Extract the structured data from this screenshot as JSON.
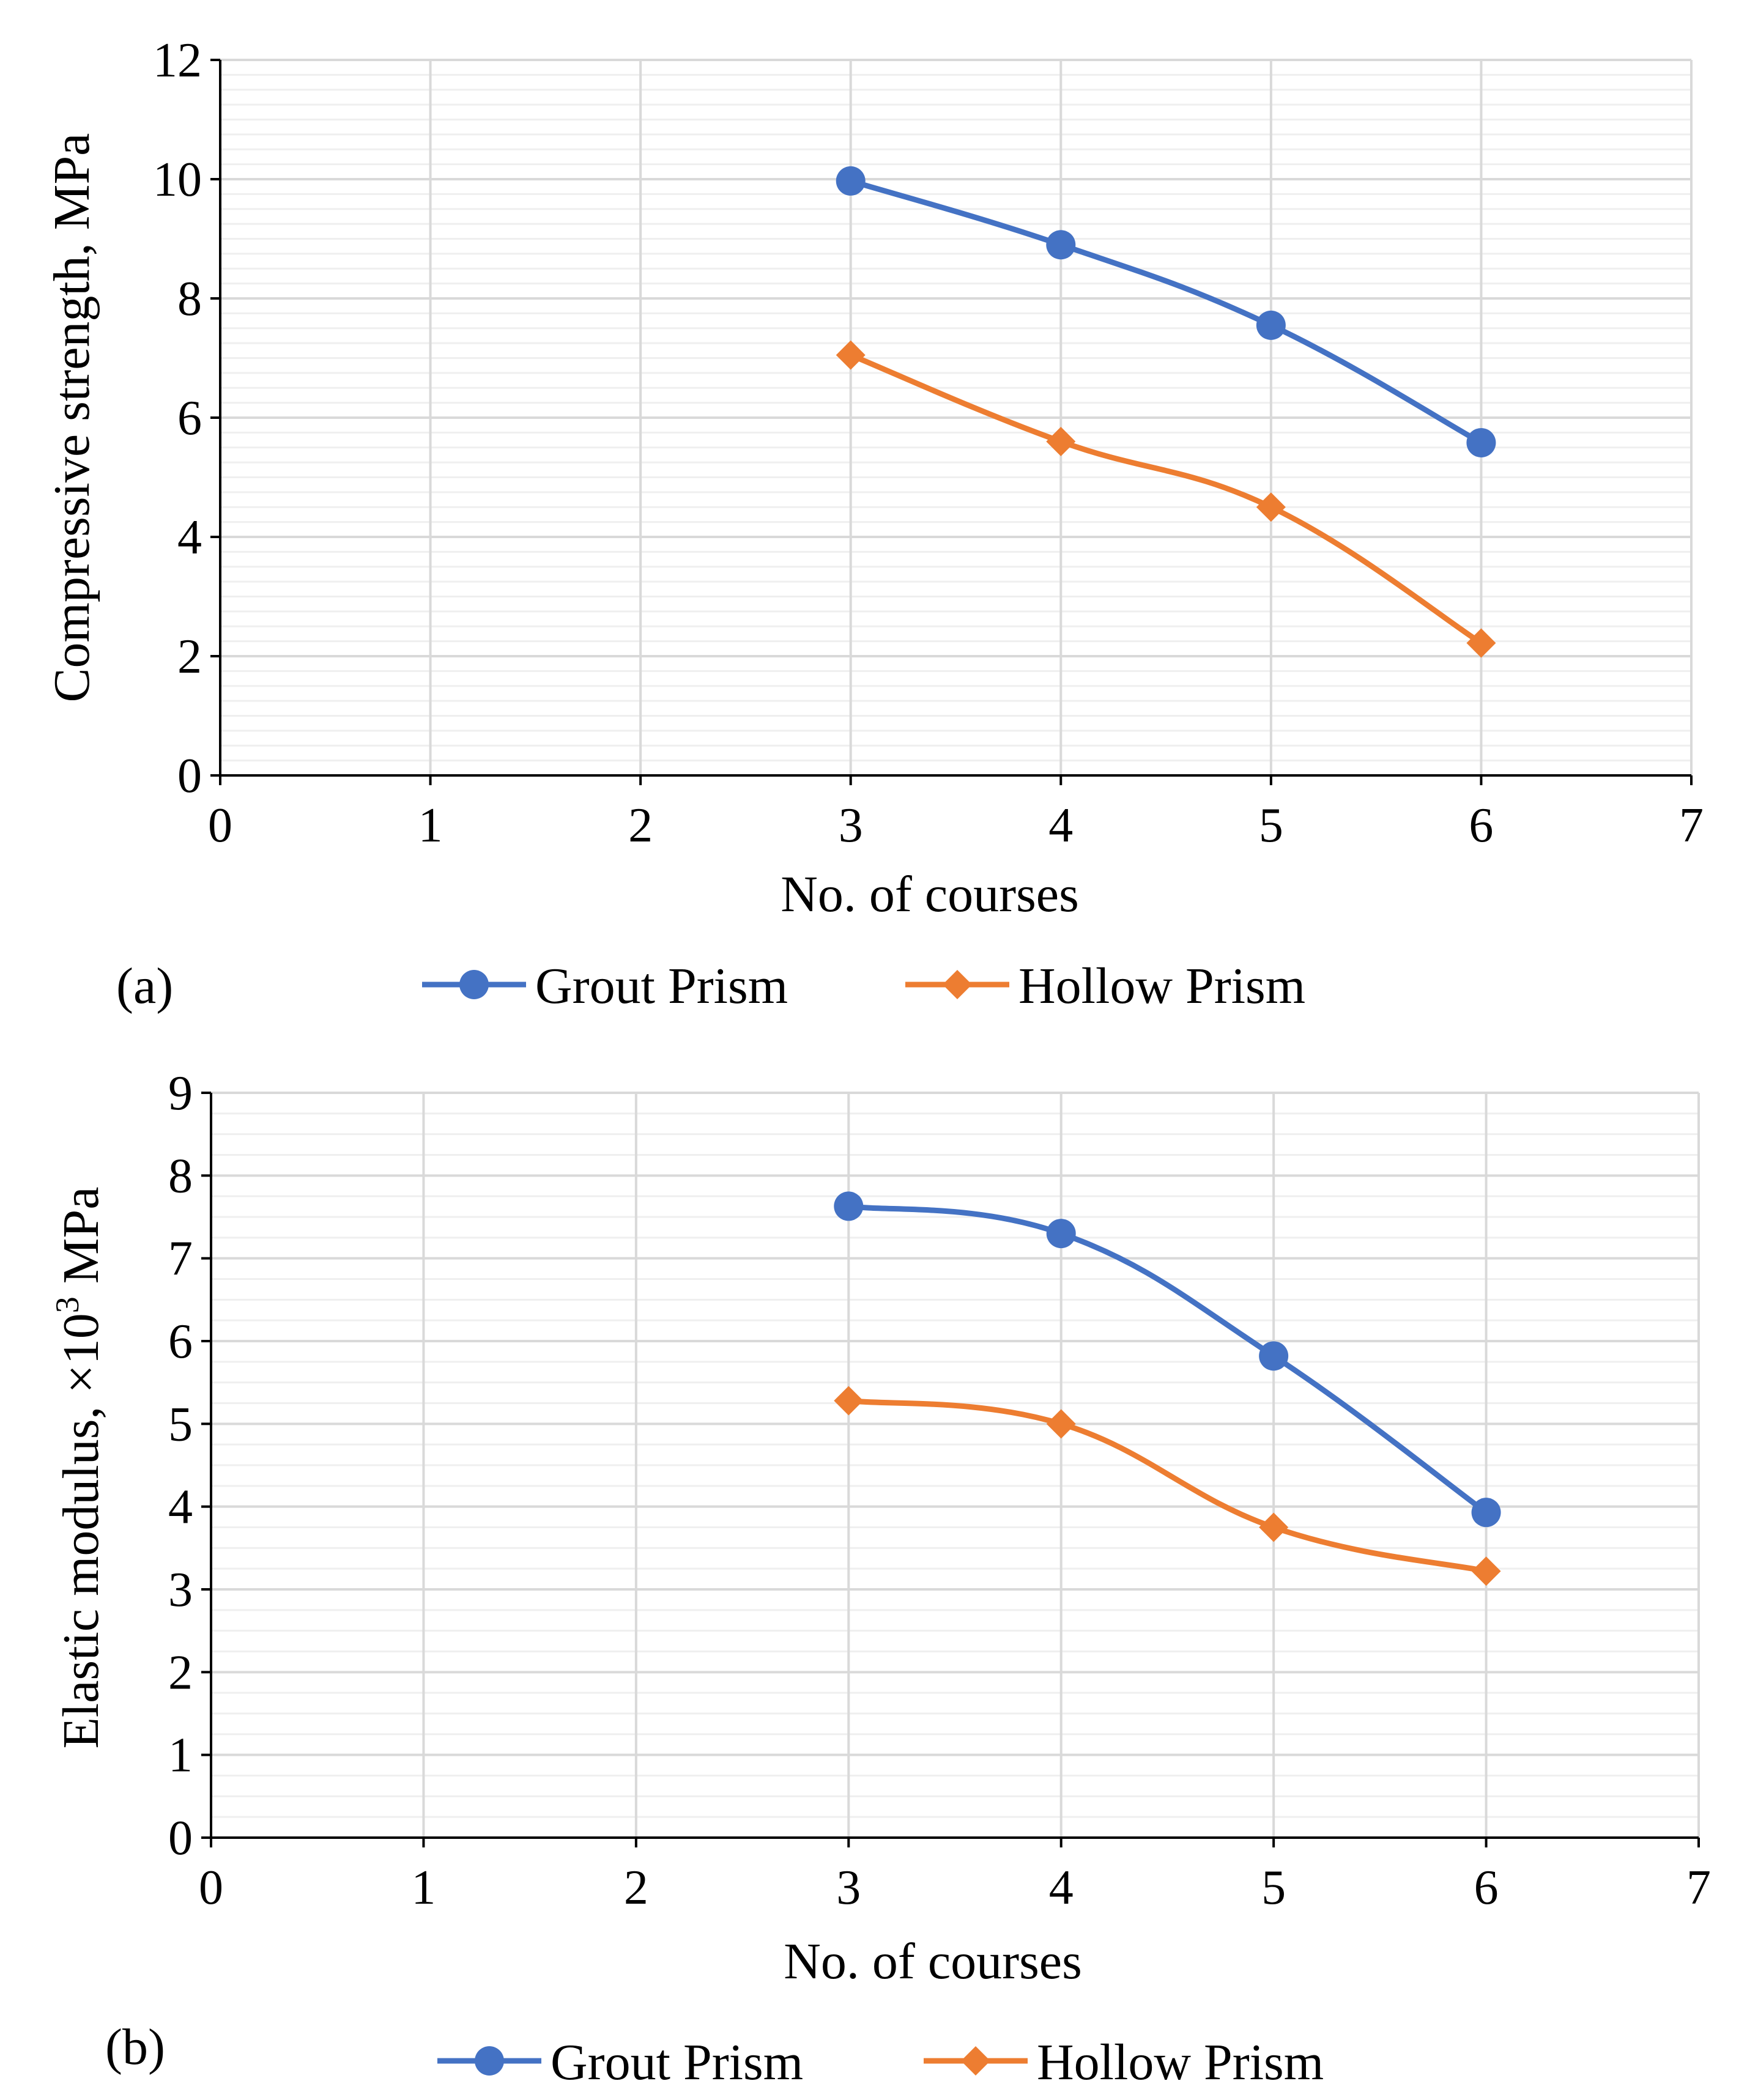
{
  "colors": {
    "grout": "#4472C4",
    "hollow": "#ED7D31",
    "major_grid": "#D9D9D9",
    "minor_grid": "#EFEFEF",
    "axis": "#000000"
  },
  "chart_data": [
    {
      "type": "line",
      "panel_label": "(a)",
      "title": "",
      "xlabel": "No. of courses",
      "ylabel": "Compressive strength, MPa",
      "xlim": [
        0,
        7
      ],
      "ylim": [
        0,
        12
      ],
      "x_ticks": [
        0,
        1,
        2,
        3,
        4,
        5,
        6,
        7
      ],
      "y_ticks": [
        0,
        2,
        4,
        6,
        8,
        10,
        12
      ],
      "grid": true,
      "legend_position": "bottom",
      "series": [
        {
          "name": "Grout Prism",
          "marker": "circle",
          "color_key": "grout",
          "x": [
            3,
            4,
            5,
            6
          ],
          "values": [
            9.97,
            8.9,
            7.55,
            5.58
          ]
        },
        {
          "name": "Hollow Prism",
          "marker": "diamond",
          "color_key": "hollow",
          "x": [
            3,
            4,
            5,
            6
          ],
          "values": [
            7.05,
            5.6,
            4.5,
            2.22
          ]
        }
      ]
    },
    {
      "type": "line",
      "panel_label": "(b)",
      "title": "",
      "xlabel": "No. of courses",
      "ylabel": "Elastic modulus, ×10",
      "ylabel_sup": "3",
      "ylabel_suffix": " MPa",
      "xlim": [
        0,
        7
      ],
      "ylim": [
        0,
        9
      ],
      "x_ticks": [
        0,
        1,
        2,
        3,
        4,
        5,
        6,
        7
      ],
      "y_ticks": [
        0,
        1,
        2,
        3,
        4,
        5,
        6,
        7,
        8,
        9
      ],
      "grid": true,
      "legend_position": "bottom",
      "series": [
        {
          "name": "Grout Prism",
          "marker": "circle",
          "color_key": "grout",
          "x": [
            3,
            4,
            5,
            6
          ],
          "values": [
            7.63,
            7.3,
            5.82,
            3.93
          ]
        },
        {
          "name": "Hollow Prism",
          "marker": "diamond",
          "color_key": "hollow",
          "x": [
            3,
            4,
            5,
            6
          ],
          "values": [
            5.28,
            5.0,
            3.75,
            3.22
          ]
        }
      ]
    }
  ]
}
